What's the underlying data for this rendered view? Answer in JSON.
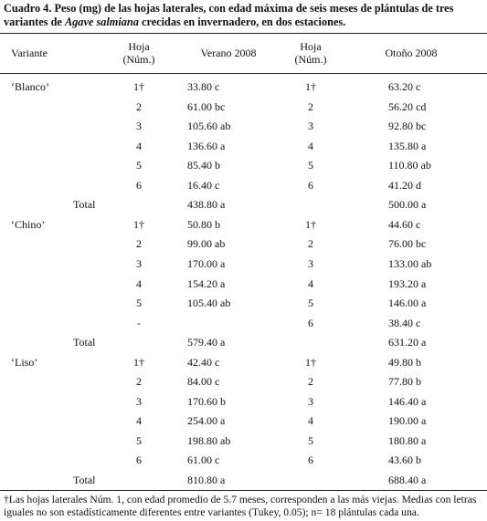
{
  "caption": {
    "lead": "Cuadro 4. Peso (mg) de las hojas laterales, con edad máxima de seis meses de plántulas de tres variantes de ",
    "species": "Agave salmiana",
    "tail": " crecidas en invernadero, en dos estaciones."
  },
  "header": {
    "variante": "Variante",
    "hoja1": [
      "Hoja",
      "(Núm.)"
    ],
    "verano": "Verano 2008",
    "hoja2": [
      "Hoja",
      "(Núm.)"
    ],
    "otono": "Otoño 2008"
  },
  "rows": [
    {
      "variante": "‘Blanco’",
      "hoja1": "1†",
      "verano": "33.80 c",
      "hoja2": "1†",
      "otono": "63.20 c"
    },
    {
      "hoja1": "2",
      "verano": "61.00 bc",
      "hoja2": "2",
      "otono": "56.20 cd"
    },
    {
      "hoja1": "3",
      "verano": "105.60 ab",
      "hoja2": "3",
      "otono": "92.80 bc"
    },
    {
      "hoja1": "4",
      "verano": "136.60 a",
      "hoja2": "4",
      "otono": "135.80 a"
    },
    {
      "hoja1": "5",
      "verano": "85.40 b",
      "hoja2": "5",
      "otono": "110.80 ab"
    },
    {
      "hoja1": "6",
      "verano": "16.40 c",
      "hoja2": "6",
      "otono": "41.20 d"
    },
    {
      "total": "Total",
      "verano": "438.80 a",
      "otono": "500.00 a"
    },
    {
      "variante": "‘Chino’",
      "hoja1": "1†",
      "verano": "50.80 b",
      "hoja2": "1†",
      "otono": "44.60 c"
    },
    {
      "hoja1": "2",
      "verano": "99.00 ab",
      "hoja2": "2",
      "otono": "76.00 bc"
    },
    {
      "hoja1": "3",
      "verano": "170.00 a",
      "hoja2": "3",
      "otono": "133.00 ab"
    },
    {
      "hoja1": "4",
      "verano": "154.20 a",
      "hoja2": "4",
      "otono": "193.20 a"
    },
    {
      "hoja1": "5",
      "verano": "105.40 ab",
      "hoja2": "5",
      "otono": "146.00 a"
    },
    {
      "hoja1": "-",
      "hoja2": "6",
      "otono": "38.40 c"
    },
    {
      "total": "Total",
      "verano": "579.40 a",
      "otono": "631.20 a"
    },
    {
      "variante": "‘Liso’",
      "hoja1": "1†",
      "verano": "42.40 c",
      "hoja2": "1†",
      "otono": "49.80 b"
    },
    {
      "hoja1": "2",
      "verano": "84.00 c",
      "hoja2": "2",
      "otono": "77.80 b"
    },
    {
      "hoja1": "3",
      "verano": "170.60 b",
      "hoja2": "3",
      "otono": "146.40 a"
    },
    {
      "hoja1": "4",
      "verano": "254.00 a",
      "hoja2": "4",
      "otono": "190.00 a"
    },
    {
      "hoja1": "5",
      "verano": "198.80 ab",
      "hoja2": "5",
      "otono": "180.80 a"
    },
    {
      "hoja1": "6",
      "verano": "61.00 c",
      "hoja2": "6",
      "otono": "43.60 b"
    },
    {
      "total": "Total",
      "verano": "810.80 a",
      "otono": "688.40 a"
    }
  ],
  "footnote": "†Las hojas laterales Núm. 1, con edad promedio de 5.7 meses, corresponden a las más viejas. Medias con letras iguales no son estadísticamente diferentes entre variantes (Tukey, 0.05); n= 18 plántulas cada una."
}
